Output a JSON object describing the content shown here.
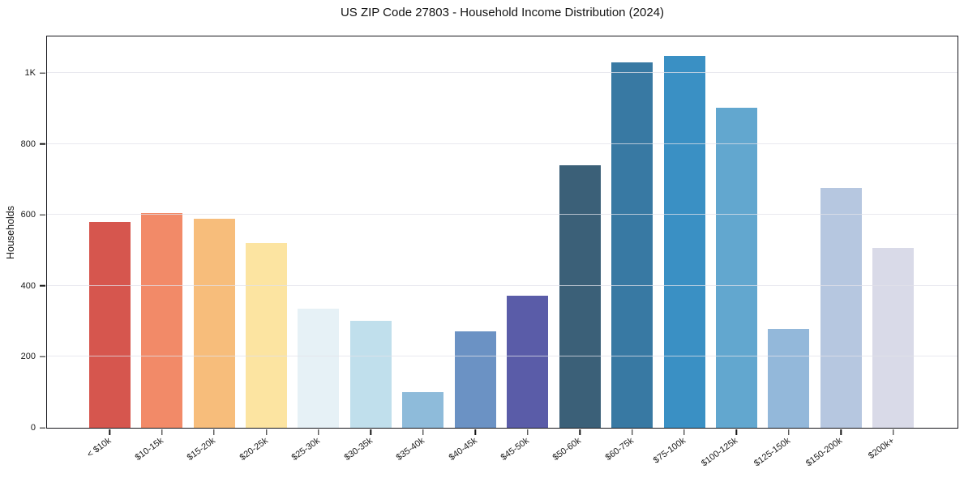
{
  "figure": {
    "background": "#ffffff",
    "axis_color": "#16161c",
    "grid_color": "#e2e2e9",
    "text_color": "#1a1a1a"
  },
  "chart_data": {
    "type": "bar",
    "title": "US ZIP Code 27803 - Household Income Distribution (2024)",
    "xlabel": "",
    "ylabel": "Households",
    "categories": [
      "< $10k",
      "$10-15k",
      "$15-20k",
      "$20-25k",
      "$25-30k",
      "$30-35k",
      "$35-40k",
      "$40-45k",
      "$45-50k",
      "$50-60k",
      "$60-75k",
      "$75-100k",
      "$100-125k",
      "$125-150k",
      "$150-200k",
      "$200k+"
    ],
    "values": [
      580,
      606,
      590,
      520,
      335,
      301,
      101,
      271,
      372,
      740,
      1031,
      1049,
      903,
      278,
      675,
      506
    ],
    "bar_colors": [
      "#d6564e",
      "#f28a68",
      "#f7bd7b",
      "#fce4a1",
      "#e6f1f6",
      "#c0dfec",
      "#8ebbda",
      "#6b92c4",
      "#5a5ca8",
      "#3b6078",
      "#3879a3",
      "#3a90c4",
      "#62a7cf",
      "#93b8da",
      "#b6c7e0",
      "#d9dae8"
    ],
    "ylim": [
      0,
      1103
    ],
    "yticks": {
      "values": [
        0,
        200,
        400,
        600,
        800,
        1000
      ],
      "labels": [
        "0",
        "200",
        "400",
        "600",
        "800",
        "1K"
      ]
    },
    "grid": "horizontal-only",
    "legend": "none",
    "x_tick_rotation_deg": 36
  }
}
